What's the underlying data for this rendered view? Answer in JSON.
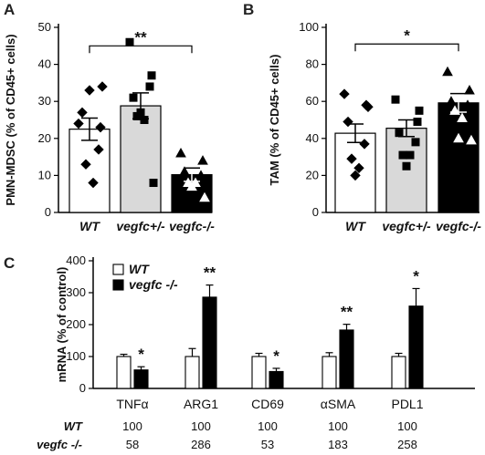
{
  "chart_data": [
    {
      "panel": "A",
      "type": "bar",
      "ylabel": "PMN-MDSC (% of CD45+ cells)",
      "yticks": [
        "0",
        "10",
        "20",
        "30",
        "40",
        "50"
      ],
      "ylim": [
        0,
        50
      ],
      "categories": [
        "WT",
        "vegfc+/-",
        "vegfc-/-"
      ],
      "values": [
        22.5,
        28.8,
        10.2
      ],
      "errors": [
        3.0,
        3.5,
        1.8
      ],
      "fills": [
        "#ffffff",
        "#d9d9d9",
        "#000000"
      ],
      "points": [
        [
          24,
          23,
          27,
          17,
          13,
          8,
          33,
          34
        ],
        [
          46,
          37,
          31,
          34,
          26,
          25,
          27,
          8
        ],
        [
          16,
          14,
          11,
          10,
          8,
          8,
          7,
          4
        ]
      ],
      "markers": [
        "diamond",
        "square",
        "triangle"
      ],
      "significance": {
        "label": "**",
        "from": 0,
        "to": 2,
        "y": 45
      }
    },
    {
      "panel": "B",
      "type": "bar",
      "ylabel": "TAM (% of CD45+ cells)",
      "yticks": [
        "0",
        "20",
        "40",
        "60",
        "80",
        "100"
      ],
      "ylim": [
        0,
        100
      ],
      "categories": [
        "WT",
        "vegfc+/-",
        "vegfc-/-"
      ],
      "values": [
        42.8,
        45.5,
        59.2
      ],
      "errors": [
        5.0,
        4.5,
        5.0
      ],
      "fills": [
        "#ffffff",
        "#d9d9d9",
        "#000000"
      ],
      "points": [
        [
          64,
          58,
          49,
          37,
          29,
          24,
          20,
          57
        ],
        [
          61,
          49,
          43,
          38,
          31,
          31,
          25,
          55
        ],
        [
          76,
          66,
          60,
          58,
          55,
          51,
          40,
          39
        ]
      ],
      "markers": [
        "diamond",
        "square",
        "triangle"
      ],
      "significance": {
        "label": "*",
        "from": 0,
        "to": 2,
        "y": 91
      }
    },
    {
      "panel": "C",
      "type": "bar",
      "ylabel": "mRNA (% of control)",
      "yticks": [
        "0",
        "100",
        "200",
        "300",
        "400"
      ],
      "ylim": [
        0,
        400
      ],
      "categories": [
        "TNFα",
        "ARG1",
        "CD69",
        "αSMA",
        "PDL1"
      ],
      "series": [
        {
          "name": "WT",
          "values": [
            100,
            100,
            100,
            100,
            100
          ],
          "errors": [
            7,
            25,
            10,
            12,
            10
          ],
          "color": "#ffffff"
        },
        {
          "name": "vegfc -/-",
          "values": [
            58,
            286,
            53,
            183,
            258
          ],
          "errors": [
            10,
            38,
            10,
            18,
            55
          ],
          "color": "#000000"
        }
      ],
      "significance": [
        "*",
        "**",
        "*",
        "**",
        "*"
      ],
      "table": {
        "rows": [
          {
            "label": "WT",
            "values": [
              "100",
              "100",
              "100",
              "100",
              "100"
            ]
          },
          {
            "label": "vegfc -/-",
            "values": [
              "58",
              "286",
              "53",
              "183",
              "258"
            ]
          }
        ]
      }
    }
  ],
  "panel_letters": [
    "A",
    "B",
    "C"
  ]
}
